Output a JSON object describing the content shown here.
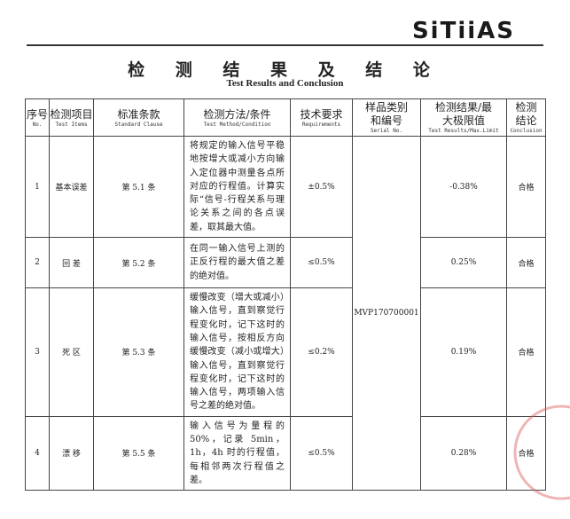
{
  "header": {
    "logo": "SiTiiAS",
    "title": "检 测 结 果 及 结 论",
    "subtitle": "Test Results and Conclusion"
  },
  "columns": [
    {
      "cn": "序号",
      "en": "No."
    },
    {
      "cn": "检测项目",
      "en": "Test Items"
    },
    {
      "cn": "标准条款",
      "en": "Standard Clause"
    },
    {
      "cn": "检测方法/条件",
      "en": "Test Method/Condition"
    },
    {
      "cn": "技术要求",
      "en": "Requirements"
    },
    {
      "cn": "样品类别和编号",
      "en": "Serial No."
    },
    {
      "cn": "检测结果/最大极限值",
      "en": "Test Results/Max.Limit"
    },
    {
      "cn": "检测结论",
      "en": "Conclusion"
    }
  ],
  "serial": "MVP170700001",
  "rows": [
    {
      "no": "1",
      "item": "基本误差",
      "clause": "第 5.1 条",
      "method": "将规定的输入信号平稳地按增大或减小方向输入定位器中测量各点所对应的行程值。计算实际“信号-行程关系与理论关系之间的各点误差，取其最大值。",
      "req": "±0.5%",
      "result": "-0.38%",
      "conclusion": "合格"
    },
    {
      "no": "2",
      "item": "回 差",
      "clause": "第 5.2 条",
      "method": "在同一输入信号上测的正反行程的最大值之差的绝对值。",
      "req": "≤0.5%",
      "result": "0.25%",
      "conclusion": "合格"
    },
    {
      "no": "3",
      "item": "死 区",
      "clause": "第 5.3 条",
      "method": "缓慢改变（增大或减小）输入信号，直到察觉行程变化时，记下这时的输入信号，按相反方向缓慢改变（减小或增大）输入信号，直到察觉行程变化时，记下这时的输入信号，两项输入信号之差的绝对值。",
      "req": "≤0.2%",
      "result": "0.19%",
      "conclusion": "合格"
    },
    {
      "no": "4",
      "item": "漂 移",
      "clause": "第 5.5 条",
      "method": "输入信号为量程的50%，记录 5min，1h，4h 时的行程值，每相邻两次行程值之差。",
      "req": "≤0.5%",
      "result": "0.28%",
      "conclusion": "合格"
    }
  ]
}
